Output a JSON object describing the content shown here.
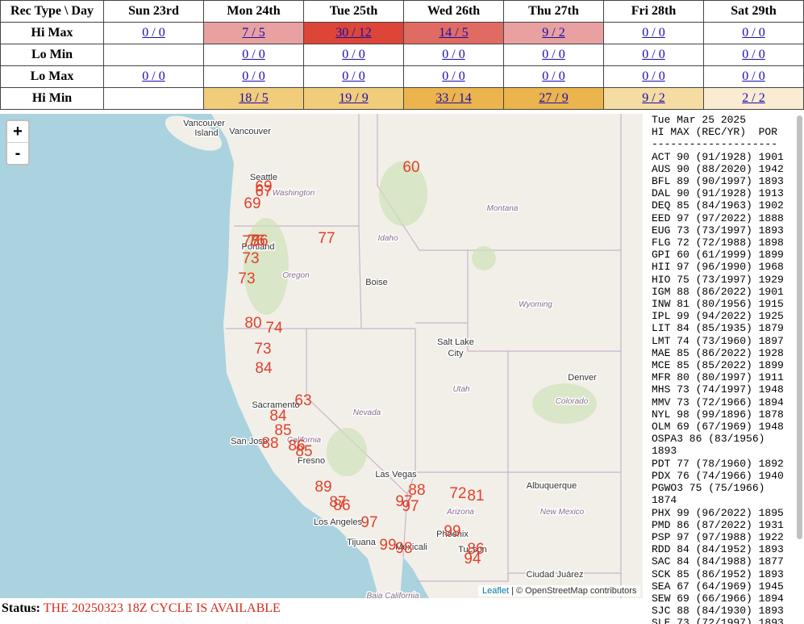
{
  "table": {
    "header": [
      "Rec Type \\ Day",
      "Sun 23rd",
      "Mon 24th",
      "Tue 25th",
      "Wed 26th",
      "Thu 27th",
      "Fri 28th",
      "Sat 29th"
    ],
    "rows": [
      {
        "label": "Hi Max",
        "cells": [
          {
            "text": "0 / 0"
          },
          {
            "text": "7 / 5",
            "color": "#e8a1a0"
          },
          {
            "text": "30 / 12",
            "color": "#dc4538"
          },
          {
            "text": "14 / 5",
            "color": "#e06b62"
          },
          {
            "text": "9 / 2",
            "color": "#e8a1a0"
          },
          {
            "text": "0 / 0"
          },
          {
            "text": "0 / 0"
          }
        ]
      },
      {
        "label": "Lo Min",
        "cells": [
          null,
          {
            "text": "0 / 0"
          },
          {
            "text": "0 / 0"
          },
          {
            "text": "0 / 0"
          },
          {
            "text": "0 / 0"
          },
          {
            "text": "0 / 0"
          },
          {
            "text": "0 / 0"
          }
        ]
      },
      {
        "label": "Lo Max",
        "cells": [
          {
            "text": "0 / 0"
          },
          {
            "text": "0 / 0"
          },
          {
            "text": "0 / 0"
          },
          {
            "text": "0 / 0"
          },
          {
            "text": "0 / 0"
          },
          {
            "text": "0 / 0"
          },
          {
            "text": "0 / 0"
          }
        ]
      },
      {
        "label": "Hi Min",
        "cells": [
          null,
          {
            "text": "18 / 5",
            "color": "#f1cc7b"
          },
          {
            "text": "19 / 9",
            "color": "#f1cc7b"
          },
          {
            "text": "33 / 14",
            "color": "#ebb44c"
          },
          {
            "text": "27 / 9",
            "color": "#ebb44c"
          },
          {
            "text": "9 / 2",
            "color": "#f5dca3"
          },
          {
            "text": "2 / 2",
            "color": "#faebd3"
          }
        ]
      }
    ]
  },
  "map": {
    "zoom_in": "+",
    "zoom_out": "-",
    "labels": [
      "Vancouver",
      "Island",
      "Vancouver",
      "Seattle",
      "Washington",
      "Montana",
      "Idaho",
      "Portland",
      "Oregon",
      "Boise",
      "Wyoming",
      "Salt Lake",
      "City",
      "Utah",
      "Denver",
      "Colorado",
      "Sacramento",
      "Nevada",
      "California",
      "San Jose",
      "Fresno",
      "Las Vegas",
      "Arizona",
      "Albuquerque",
      "New Mexico",
      "Los Angeles",
      "Phoenix",
      "Tijuana",
      "Mexicali",
      "Tucson",
      "Ciudad Juárez",
      "Baja California"
    ],
    "markers": [
      "60",
      "69",
      "67",
      "69",
      "77",
      "75",
      "76",
      "76",
      "73",
      "73",
      "80",
      "74",
      "73",
      "84",
      "63",
      "84",
      "85",
      "88",
      "86",
      "85",
      "89",
      "88",
      "97",
      "97",
      "72",
      "81",
      "87",
      "86",
      "97",
      "99",
      "99",
      "98",
      "86",
      "94"
    ],
    "attribution_link": "Leaflet",
    "attribution": "| © OpenStreetMap contributors"
  },
  "panel": {
    "lines": [
      "Tue Mar 25 2025",
      "HI MAX (REC/YR)  POR",
      "--------------------",
      "ACT 90 (91/1928) 1901",
      "AUS 90 (88/2020) 1942",
      "BFL 89 (90/1997) 1893",
      "DAL 90 (91/1928) 1913",
      "DEQ 85 (84/1963) 1902",
      "EED 97 (97/2022) 1888",
      "EUG 73 (73/1997) 1893",
      "FLG 72 (72/1988) 1898",
      "GPI 60 (61/1999) 1899",
      "HII 97 (96/1990) 1968",
      "HIO 75 (73/1997) 1929",
      "IGM 88 (86/2022) 1901",
      "INW 81 (80/1956) 1915",
      "IPL 99 (94/2022) 1925",
      "LIT 84 (85/1935) 1879",
      "LMT 74 (73/1960) 1897",
      "MAE 85 (86/2022) 1928",
      "MCE 85 (85/2022) 1899",
      "MFR 80 (80/1997) 1911",
      "MHS 73 (74/1997) 1948",
      "MMV 73 (72/1966) 1894",
      "NYL 98 (99/1896) 1878",
      "OLM 69 (67/1969) 1948",
      "OSPA3 86 (83/1956) 1893",
      "PDT 77 (78/1960) 1892",
      "PDX 76 (74/1966) 1940",
      "PGWO3 75 (75/1966) 1874",
      "PHX 99 (96/2022) 1895",
      "PMD 86 (87/2022) 1931",
      "PSP 97 (97/1988) 1922",
      "RDD 84 (84/1952) 1893",
      "SAC 84 (84/1988) 1877",
      "SCK 85 (86/1952) 1893",
      "SEA 67 (64/1969) 1945",
      "SEW 69 (66/1966) 1894",
      "SJC 88 (84/1930) 1893",
      "SLE 73 (72/1997) 1893"
    ]
  },
  "status": {
    "label": "Status:",
    "message": "THE 20250323 18Z CYCLE IS AVAILABLE"
  }
}
